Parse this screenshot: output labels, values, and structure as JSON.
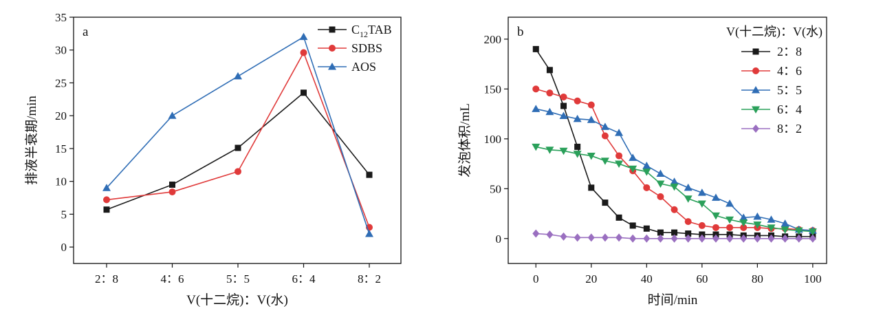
{
  "chart_data": [
    {
      "type": "line",
      "panel_label": "a",
      "xlabel": "V(十二烷)：V(水)",
      "ylabel": "排液半衰期/min",
      "categories": [
        "2：8",
        "4：6",
        "5：5",
        "6：4",
        "8：2"
      ],
      "ylim": [
        -2.5,
        35
      ],
      "yticks": [
        0,
        5,
        10,
        15,
        20,
        25,
        30,
        35
      ],
      "grid": false,
      "legend_position": "top-right",
      "series": [
        {
          "name": "C12TAB",
          "color": "#1a1a1a",
          "marker": "square",
          "values": [
            5.7,
            9.5,
            15.1,
            23.5,
            11.0
          ]
        },
        {
          "name": "SDBS",
          "color": "#e03a3a",
          "marker": "circle",
          "values": [
            7.2,
            8.4,
            11.5,
            29.6,
            3.0
          ]
        },
        {
          "name": "AOS",
          "color": "#2f6db5",
          "marker": "triangle-up",
          "values": [
            9.0,
            20.0,
            26.0,
            32.0,
            2.0
          ]
        }
      ]
    },
    {
      "type": "line",
      "panel_label": "b",
      "xlabel": "时间/min",
      "ylabel": "发泡体积/mL",
      "legend_title": "V(十二烷)：V(水)",
      "xlim": [
        -10,
        105
      ],
      "ylim": [
        -25,
        222
      ],
      "xticks": [
        0,
        20,
        40,
        60,
        80,
        100
      ],
      "yticks": [
        0,
        50,
        100,
        150,
        200
      ],
      "grid": false,
      "legend_position": "top-right",
      "x": [
        0,
        5,
        10,
        15,
        20,
        25,
        30,
        35,
        40,
        45,
        50,
        55,
        60,
        65,
        70,
        75,
        80,
        85,
        90,
        95,
        100
      ],
      "series": [
        {
          "name": "2：8",
          "color": "#1a1a1a",
          "marker": "square",
          "values": [
            190,
            169,
            133,
            92,
            51,
            36,
            21,
            13,
            10,
            6,
            6,
            5,
            4,
            4,
            4,
            3,
            3,
            3,
            2,
            2,
            2
          ]
        },
        {
          "name": "4：6",
          "color": "#e03a3a",
          "marker": "circle",
          "values": [
            150,
            146,
            142,
            138,
            134,
            103,
            83,
            68,
            51,
            42,
            29,
            17,
            13,
            11,
            11,
            11,
            11,
            10,
            10,
            9,
            8
          ]
        },
        {
          "name": "5：5",
          "color": "#2f6db5",
          "marker": "triangle-up",
          "values": [
            130,
            127,
            123,
            120,
            119,
            112,
            106,
            81,
            73,
            65,
            57,
            51,
            46,
            41,
            35,
            21,
            22,
            19,
            15,
            9,
            8
          ]
        },
        {
          "name": "6：4",
          "color": "#2aa05a",
          "marker": "triangle-down",
          "values": [
            92,
            89,
            88,
            85,
            83,
            78,
            75,
            70,
            67,
            55,
            52,
            40,
            35,
            23,
            19,
            16,
            14,
            11,
            9,
            8,
            7
          ]
        },
        {
          "name": "8：2",
          "color": "#9a6fc0",
          "marker": "diamond",
          "values": [
            5,
            4,
            2,
            1,
            1,
            1,
            1,
            0,
            0,
            0,
            0,
            0,
            0,
            0,
            0,
            0,
            0,
            0,
            0,
            0,
            0
          ]
        }
      ]
    }
  ]
}
